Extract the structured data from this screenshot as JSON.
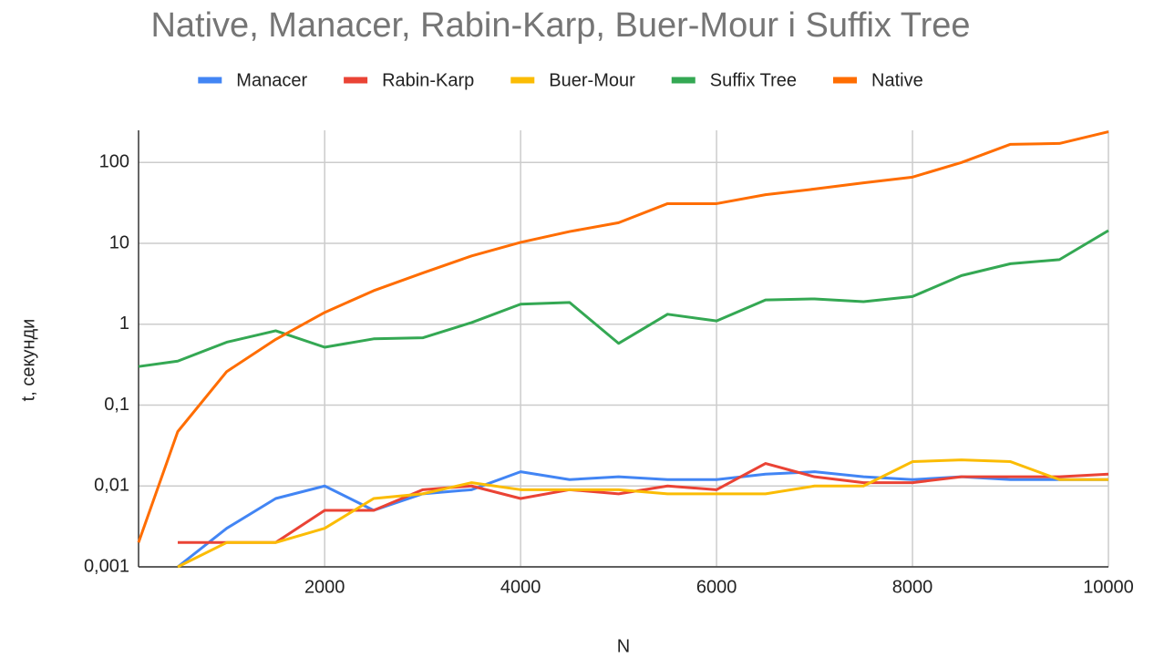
{
  "chart_data": {
    "type": "line",
    "title": "Native, Manacer, Rabin-Karp, Buer-Mour i Suffix Tree",
    "x_label": "N",
    "y_label": "t, секунди",
    "x": [
      100,
      500,
      1000,
      1500,
      2000,
      2500,
      3000,
      3500,
      4000,
      4500,
      5000,
      5500,
      6000,
      6500,
      7000,
      7500,
      8000,
      8500,
      9000,
      9500,
      10000
    ],
    "series": [
      {
        "name": "Manacer",
        "color": "#4285f4",
        "values": [
          null,
          0.001,
          0.003,
          0.007,
          0.01,
          0.005,
          0.008,
          0.009,
          0.015,
          0.012,
          0.013,
          0.012,
          0.012,
          0.014,
          0.015,
          0.013,
          0.012,
          0.013,
          0.012,
          0.012,
          0.012
        ]
      },
      {
        "name": "Rabin-Karp",
        "color": "#ea4335",
        "values": [
          null,
          0.002,
          0.002,
          0.002,
          0.005,
          0.005,
          0.009,
          0.01,
          0.007,
          0.009,
          0.008,
          0.01,
          0.009,
          0.019,
          0.013,
          0.011,
          0.011,
          0.013,
          0.013,
          0.013,
          0.014
        ]
      },
      {
        "name": "Buer-Mour",
        "color": "#fbbc04",
        "values": [
          null,
          0.001,
          0.002,
          0.002,
          0.003,
          0.007,
          0.008,
          0.011,
          0.009,
          0.009,
          0.009,
          0.008,
          0.008,
          0.008,
          0.01,
          0.01,
          0.02,
          0.021,
          0.02,
          0.012,
          0.012
        ]
      },
      {
        "name": "Suffix Tree",
        "color": "#34a853",
        "values": [
          0.3,
          0.35,
          0.6,
          0.83,
          0.52,
          0.66,
          0.68,
          1.05,
          1.77,
          1.86,
          0.58,
          1.33,
          1.1,
          2.0,
          2.06,
          1.9,
          2.2,
          4.0,
          5.6,
          6.3,
          14.4
        ]
      },
      {
        "name": "Native",
        "color": "#ff6d01",
        "values": [
          0.002,
          0.047,
          0.26,
          0.65,
          1.4,
          2.6,
          4.3,
          7,
          10.3,
          14,
          18,
          31,
          31,
          40,
          47,
          56,
          66,
          100,
          168,
          172,
          240
        ]
      }
    ],
    "xlim": [
      100,
      10000
    ],
    "xticks": [
      2000,
      4000,
      6000,
      8000,
      10000
    ],
    "ylim": [
      0.001,
      250
    ],
    "yticks": [
      {
        "value": 0.001,
        "label": "0,001"
      },
      {
        "value": 0.01,
        "label": "0,01"
      },
      {
        "value": 0.1,
        "label": "0,1"
      },
      1,
      10,
      100
    ],
    "log_y": true,
    "grid": true,
    "legend": "top"
  }
}
